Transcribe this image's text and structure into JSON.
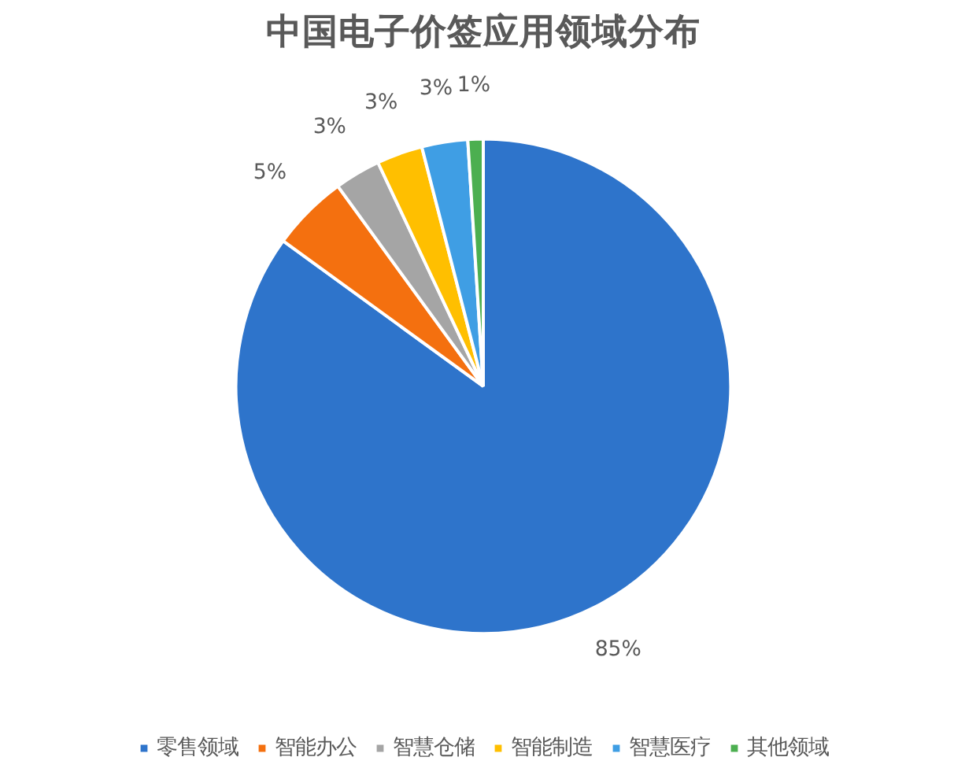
{
  "chart_data": {
    "type": "pie",
    "title": "中国电子价签应用领域分布",
    "categories": [
      "零售领域",
      "智能办公",
      "智慧仓储",
      "智能制造",
      "智慧医疗",
      "其他领域"
    ],
    "values": [
      85,
      5,
      3,
      3,
      3,
      1
    ],
    "value_labels": [
      "85%",
      "5%",
      "3%",
      "3%",
      "3%",
      "1%"
    ],
    "colors": [
      "#2e74cb",
      "#f4700f",
      "#a5a5a5",
      "#ffbf00",
      "#3f9ee4",
      "#4caf50"
    ],
    "legend": "bottom"
  }
}
